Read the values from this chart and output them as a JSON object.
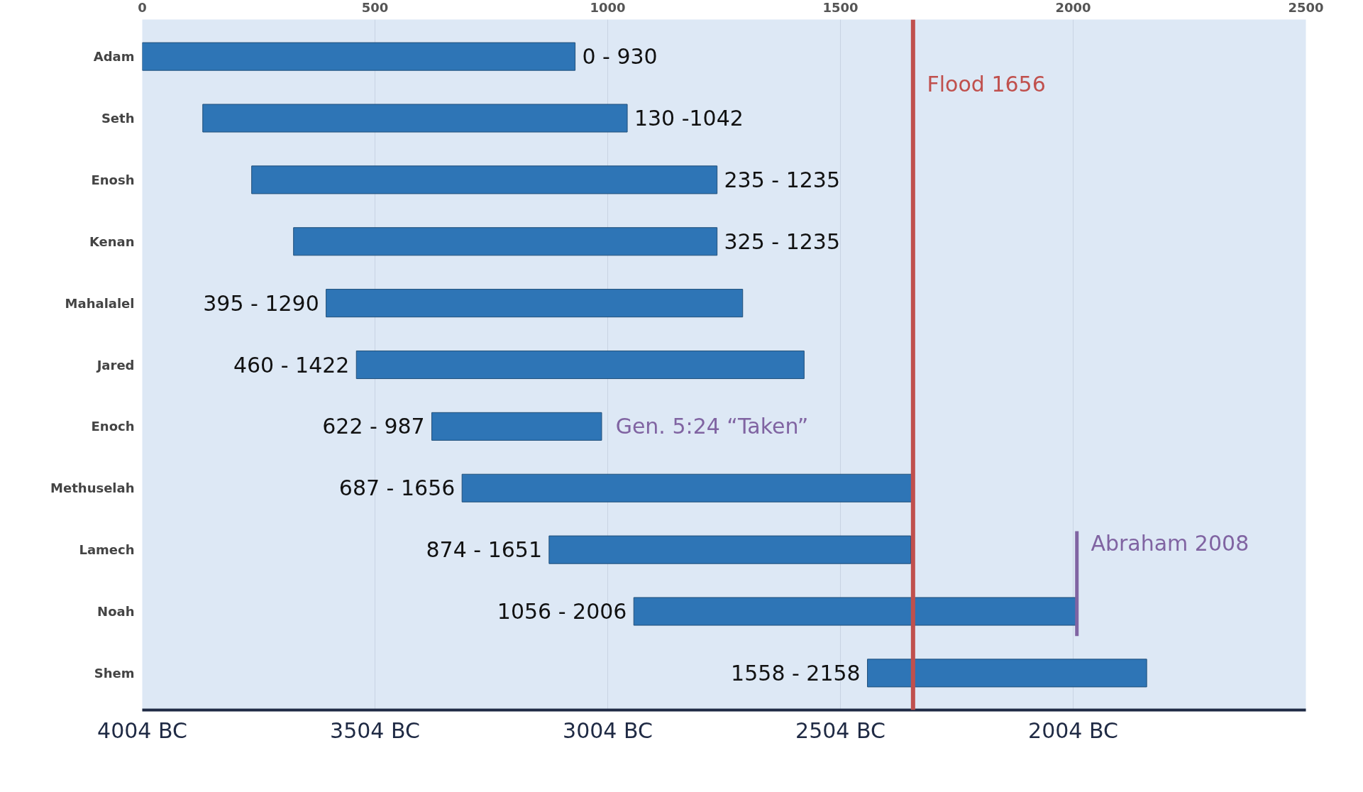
{
  "chart_data": {
    "type": "bar",
    "orientation": "horizontal",
    "categories": [
      "Adam",
      "Seth",
      "Enosh",
      "Kenan",
      "Mahalalel",
      "Jared",
      "Enoch",
      "Methuselah",
      "Lamech",
      "Noah",
      "Shem"
    ],
    "base": [
      0,
      130,
      235,
      325,
      395,
      460,
      622,
      687,
      874,
      1056,
      1558
    ],
    "values": [
      930,
      912,
      1000,
      910,
      895,
      962,
      365,
      969,
      777,
      950,
      600
    ],
    "color": "#2e75b6",
    "xlim": [
      0,
      2500
    ],
    "xticks": [
      0,
      500,
      1000,
      1500,
      2000,
      2500
    ],
    "x2lim": [
      4004,
      1504
    ],
    "x2ticks": [
      {
        "value": 4004,
        "label": "4004 BC"
      },
      {
        "value": 3504,
        "label": "3504 BC"
      },
      {
        "value": 3004,
        "label": "3004 BC"
      },
      {
        "value": 2504,
        "label": "2504 BC"
      },
      {
        "value": 2004,
        "label": "2004 BC"
      }
    ],
    "ref_lines": [
      {
        "axis": "x",
        "value": 1656,
        "label": "Flood 1656",
        "color": "#c0504d"
      },
      {
        "axis": "x",
        "value": 2008,
        "label": "Abraham 2008",
        "color": "#8064a2"
      }
    ],
    "annotations": [
      {
        "text": "0 - 930",
        "x": 930,
        "y": "Adam"
      },
      {
        "text": "130 -1042",
        "x": 1042,
        "y": "Seth"
      },
      {
        "text": "235 - 1235",
        "x": 1235,
        "y": "Enosh"
      },
      {
        "text": "325 - 1235",
        "x": 1235,
        "y": "Kenan"
      },
      {
        "text": "395 - 1290",
        "x": 395,
        "y": "Mahalalel"
      },
      {
        "text": "460 - 1422",
        "x": 460,
        "y": "Jared"
      },
      {
        "text": "622 - 987",
        "x": 622,
        "y": "Enoch"
      },
      {
        "text": "687 - 1656",
        "x": 687,
        "y": "Methuselah"
      },
      {
        "text": "874 - 1651",
        "x": 874,
        "y": "Lamech"
      },
      {
        "text": "1056 - 2006",
        "x": 1056,
        "y": "Noah"
      },
      {
        "text": "1558 - 2158",
        "x": 1558,
        "y": "Shem"
      },
      {
        "text": "Gen. 5:24 “Taken”",
        "x": 987,
        "y": "Enoch"
      }
    ],
    "grid": "x"
  }
}
